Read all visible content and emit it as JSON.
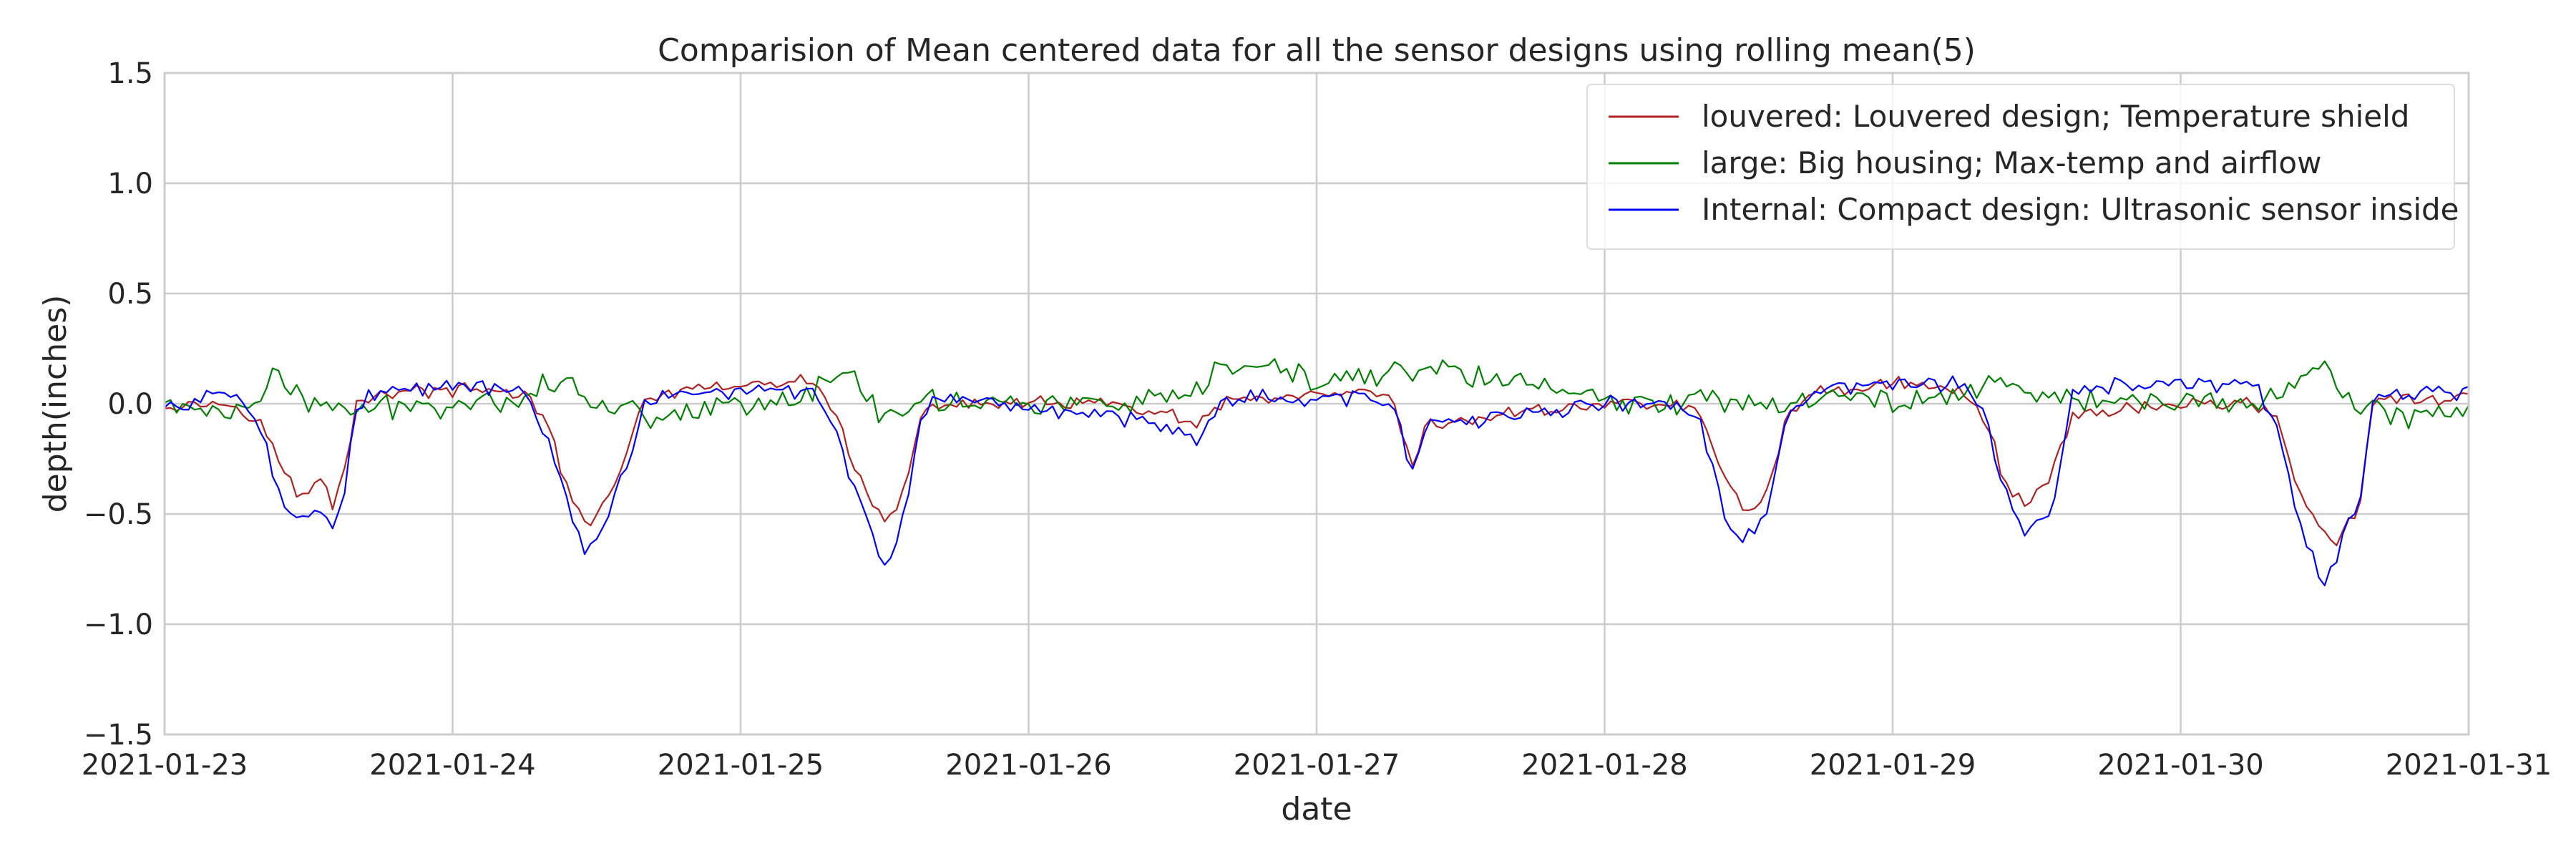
{
  "chart_data": {
    "type": "line",
    "title": "Comparision of Mean centered data for all the sensor designs using rolling mean(5)",
    "xlabel": "date",
    "ylabel": "depth(inches)",
    "x_range": [
      "2021-01-23",
      "2021-01-31"
    ],
    "ylim": [
      -1.5,
      1.5
    ],
    "x_ticks": [
      "2021-01-23",
      "2021-01-24",
      "2021-01-25",
      "2021-01-26",
      "2021-01-27",
      "2021-01-28",
      "2021-01-29",
      "2021-01-30",
      "2021-01-31"
    ],
    "y_ticks": [
      "1.5",
      "1.0",
      "0.5",
      "0.0",
      "−0.5",
      "−1.0",
      "−1.5"
    ],
    "y_tick_values": [
      1.5,
      1.0,
      0.5,
      0.0,
      -0.5,
      -1.0,
      -1.5
    ],
    "grid": true,
    "legend_position": "top-right",
    "series": [
      {
        "name": "louvered: Louvered design; Temperature shield",
        "color": "#b22222",
        "x": [
          "2021-01-23 00:00",
          "2021-01-23 06:00",
          "2021-01-23 08:00",
          "2021-01-23 09:00",
          "2021-01-23 10:00",
          "2021-01-23 11:00",
          "2021-01-23 12:00",
          "2021-01-23 13:00",
          "2021-01-23 14:00",
          "2021-01-23 15:00",
          "2021-01-23 16:00",
          "2021-01-23 18:00",
          "2021-01-24 00:00",
          "2021-01-24 06:00",
          "2021-01-24 08:00",
          "2021-01-24 09:00",
          "2021-01-24 10:00",
          "2021-01-24 11:00",
          "2021-01-24 12:00",
          "2021-01-24 13:00",
          "2021-01-24 14:00",
          "2021-01-24 15:00",
          "2021-01-24 16:00",
          "2021-01-24 18:00",
          "2021-01-25 00:00",
          "2021-01-25 06:00",
          "2021-01-25 08:00",
          "2021-01-25 09:00",
          "2021-01-25 10:00",
          "2021-01-25 11:00",
          "2021-01-25 12:00",
          "2021-01-25 13:00",
          "2021-01-25 14:00",
          "2021-01-25 15:00",
          "2021-01-25 16:00",
          "2021-01-25 18:00",
          "2021-01-26 00:00",
          "2021-01-26 06:00",
          "2021-01-26 12:00",
          "2021-01-26 14:00",
          "2021-01-26 16:00",
          "2021-01-26 18:00",
          "2021-01-27 00:00",
          "2021-01-27 06:00",
          "2021-01-27 08:00",
          "2021-01-27 09:00",
          "2021-01-27 10:00",
          "2021-01-27 12:00",
          "2021-01-27 18:00",
          "2021-01-28 00:00",
          "2021-01-28 06:00",
          "2021-01-28 08:00",
          "2021-01-28 09:00",
          "2021-01-28 10:00",
          "2021-01-28 11:00",
          "2021-01-28 12:00",
          "2021-01-28 13:00",
          "2021-01-28 14:00",
          "2021-01-28 15:00",
          "2021-01-28 16:00",
          "2021-01-28 18:00",
          "2021-01-29 00:00",
          "2021-01-29 06:00",
          "2021-01-29 08:00",
          "2021-01-29 09:00",
          "2021-01-29 10:00",
          "2021-01-29 11:00",
          "2021-01-29 12:00",
          "2021-01-29 13:00",
          "2021-01-29 14:00",
          "2021-01-29 15:00",
          "2021-01-29 16:00",
          "2021-01-29 18:00",
          "2021-01-30 00:00",
          "2021-01-30 06:00",
          "2021-01-30 08:00",
          "2021-01-30 09:00",
          "2021-01-30 10:00",
          "2021-01-30 11:00",
          "2021-01-30 12:00",
          "2021-01-30 13:00",
          "2021-01-30 14:00",
          "2021-01-30 15:00",
          "2021-01-30 16:00",
          "2021-01-30 18:00",
          "2021-01-31 00:00"
        ],
        "values": [
          0.0,
          0.0,
          -0.08,
          -0.2,
          -0.3,
          -0.42,
          -0.4,
          -0.35,
          -0.45,
          -0.3,
          0.0,
          0.05,
          0.06,
          0.05,
          -0.1,
          -0.3,
          -0.45,
          -0.55,
          -0.5,
          -0.4,
          -0.3,
          -0.15,
          0.0,
          0.05,
          0.08,
          0.1,
          -0.05,
          -0.2,
          -0.35,
          -0.45,
          -0.55,
          -0.48,
          -0.3,
          -0.1,
          0.0,
          0.0,
          0.0,
          0.0,
          -0.05,
          -0.12,
          0.0,
          0.02,
          0.03,
          0.05,
          -0.3,
          -0.1,
          -0.1,
          -0.08,
          -0.03,
          0.0,
          0.0,
          -0.05,
          -0.2,
          -0.35,
          -0.42,
          -0.5,
          -0.45,
          -0.3,
          -0.1,
          0.0,
          0.05,
          0.1,
          0.05,
          -0.1,
          -0.3,
          -0.4,
          -0.45,
          -0.4,
          -0.35,
          -0.2,
          -0.05,
          -0.05,
          -0.03,
          0.0,
          0.0,
          -0.05,
          -0.25,
          -0.4,
          -0.5,
          -0.6,
          -0.65,
          -0.55,
          -0.45,
          0.0,
          0.02,
          0.02
        ]
      },
      {
        "name": "large: Big housing; Max-temp and airflow",
        "color": "#008000",
        "x": [
          "2021-01-23 00:00",
          "2021-01-23 06:00",
          "2021-01-23 08:00",
          "2021-01-23 09:00",
          "2021-01-23 12:00",
          "2021-01-23 16:00",
          "2021-01-24 00:00",
          "2021-01-24 06:00",
          "2021-01-24 08:00",
          "2021-01-24 09:00",
          "2021-01-24 12:00",
          "2021-01-24 16:00",
          "2021-01-25 00:00",
          "2021-01-25 06:00",
          "2021-01-25 08:00",
          "2021-01-25 09:00",
          "2021-01-25 10:00",
          "2021-01-25 12:00",
          "2021-01-25 16:00",
          "2021-01-26 00:00",
          "2021-01-26 12:00",
          "2021-01-26 14:00",
          "2021-01-26 16:00",
          "2021-01-26 18:00",
          "2021-01-27 00:00",
          "2021-01-27 08:00",
          "2021-01-27 10:00",
          "2021-01-27 12:00",
          "2021-01-27 18:00",
          "2021-01-28 00:00",
          "2021-01-28 06:00",
          "2021-01-28 08:00",
          "2021-01-28 12:00",
          "2021-01-28 16:00",
          "2021-01-29 00:00",
          "2021-01-29 06:00",
          "2021-01-29 08:00",
          "2021-01-29 12:00",
          "2021-01-29 16:00",
          "2021-01-30 00:00",
          "2021-01-30 06:00",
          "2021-01-30 08:00",
          "2021-01-30 12:00",
          "2021-01-30 14:00",
          "2021-01-30 18:00",
          "2021-01-31 00:00"
        ],
        "values": [
          0.0,
          -0.05,
          0.05,
          0.12,
          0.0,
          -0.03,
          0.0,
          0.03,
          0.1,
          0.12,
          0.0,
          -0.05,
          0.0,
          0.05,
          0.12,
          0.15,
          0.05,
          -0.05,
          0.02,
          0.0,
          0.0,
          0.05,
          0.15,
          0.18,
          0.1,
          0.15,
          0.18,
          0.12,
          0.1,
          0.0,
          0.0,
          0.05,
          0.0,
          0.02,
          0.02,
          0.05,
          0.1,
          0.05,
          0.02,
          0.0,
          0.0,
          0.05,
          0.2,
          0.0,
          -0.05,
          -0.05
        ]
      },
      {
        "name": "Internal: Compact design: Ultrasonic sensor inside",
        "color": "#0000ff",
        "x": [
          "2021-01-23 00:00",
          "2021-01-23 06:00",
          "2021-01-23 08:00",
          "2021-01-23 09:00",
          "2021-01-23 10:00",
          "2021-01-23 11:00",
          "2021-01-23 12:00",
          "2021-01-23 13:00",
          "2021-01-23 14:00",
          "2021-01-23 15:00",
          "2021-01-23 16:00",
          "2021-01-23 18:00",
          "2021-01-24 00:00",
          "2021-01-24 06:00",
          "2021-01-24 08:00",
          "2021-01-24 09:00",
          "2021-01-24 10:00",
          "2021-01-24 11:00",
          "2021-01-24 12:00",
          "2021-01-24 13:00",
          "2021-01-24 14:00",
          "2021-01-24 15:00",
          "2021-01-24 16:00",
          "2021-01-24 18:00",
          "2021-01-25 00:00",
          "2021-01-25 06:00",
          "2021-01-25 08:00",
          "2021-01-25 09:00",
          "2021-01-25 10:00",
          "2021-01-25 11:00",
          "2021-01-25 12:00",
          "2021-01-25 13:00",
          "2021-01-25 14:00",
          "2021-01-25 15:00",
          "2021-01-25 16:00",
          "2021-01-25 18:00",
          "2021-01-26 00:00",
          "2021-01-26 06:00",
          "2021-01-26 12:00",
          "2021-01-26 14:00",
          "2021-01-26 16:00",
          "2021-01-26 18:00",
          "2021-01-27 00:00",
          "2021-01-27 06:00",
          "2021-01-27 08:00",
          "2021-01-27 09:00",
          "2021-01-27 10:00",
          "2021-01-27 12:00",
          "2021-01-27 18:00",
          "2021-01-28 00:00",
          "2021-01-28 06:00",
          "2021-01-28 08:00",
          "2021-01-28 09:00",
          "2021-01-28 10:00",
          "2021-01-28 11:00",
          "2021-01-28 12:00",
          "2021-01-28 13:00",
          "2021-01-28 14:00",
          "2021-01-28 15:00",
          "2021-01-28 16:00",
          "2021-01-28 18:00",
          "2021-01-29 00:00",
          "2021-01-29 06:00",
          "2021-01-29 08:00",
          "2021-01-29 09:00",
          "2021-01-29 10:00",
          "2021-01-29 11:00",
          "2021-01-29 12:00",
          "2021-01-29 13:00",
          "2021-01-29 14:00",
          "2021-01-29 15:00",
          "2021-01-29 16:00",
          "2021-01-29 18:00",
          "2021-01-30 00:00",
          "2021-01-30 06:00",
          "2021-01-30 08:00",
          "2021-01-30 09:00",
          "2021-01-30 10:00",
          "2021-01-30 11:00",
          "2021-01-30 12:00",
          "2021-01-30 13:00",
          "2021-01-30 14:00",
          "2021-01-30 15:00",
          "2021-01-30 16:00",
          "2021-01-30 18:00",
          "2021-01-31 00:00"
        ],
        "values": [
          -0.02,
          0.05,
          -0.1,
          -0.3,
          -0.45,
          -0.55,
          -0.5,
          -0.45,
          -0.58,
          -0.4,
          0.0,
          0.05,
          0.08,
          0.05,
          -0.15,
          -0.35,
          -0.55,
          -0.68,
          -0.62,
          -0.5,
          -0.35,
          -0.2,
          0.0,
          0.03,
          0.06,
          0.05,
          -0.1,
          -0.3,
          -0.45,
          -0.6,
          -0.75,
          -0.65,
          -0.4,
          -0.1,
          0.0,
          0.0,
          -0.02,
          -0.05,
          -0.1,
          -0.15,
          0.0,
          0.03,
          0.02,
          0.03,
          -0.3,
          -0.1,
          -0.08,
          -0.1,
          -0.04,
          0.0,
          0.0,
          -0.1,
          -0.3,
          -0.5,
          -0.62,
          -0.6,
          -0.55,
          -0.4,
          -0.1,
          0.0,
          0.05,
          0.1,
          0.08,
          -0.1,
          -0.35,
          -0.5,
          -0.6,
          -0.55,
          -0.5,
          -0.3,
          0.05,
          0.08,
          0.08,
          0.08,
          0.1,
          -0.1,
          -0.35,
          -0.55,
          -0.7,
          -0.82,
          -0.7,
          -0.55,
          -0.45,
          0.0,
          0.06,
          0.05
        ]
      }
    ]
  }
}
